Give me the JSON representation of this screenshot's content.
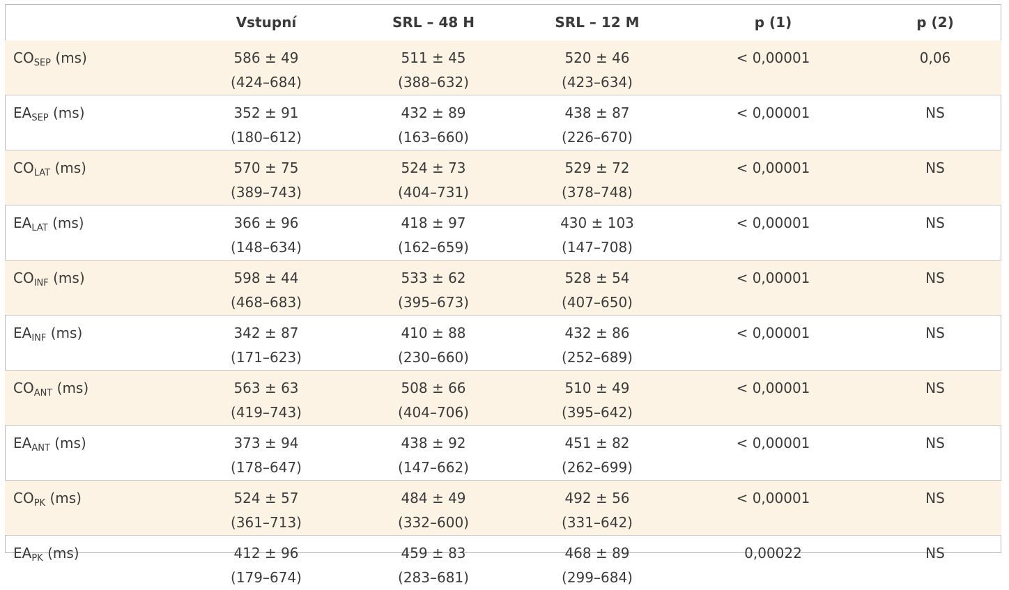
{
  "headers": [
    "",
    "Vstupní",
    "SRL – 48 H",
    "SRL – 12 M",
    "p (1)",
    "p (2)"
  ],
  "row_shading_color": "#fdf3e4",
  "rows": [
    {
      "label": "CO",
      "sub": "SEP",
      "unit": "(ms)",
      "v": [
        "586 ± 49",
        "(424–684)"
      ],
      "h48": [
        "511 ± 45",
        "(388–632)"
      ],
      "m12": [
        "520 ± 46",
        "(423–634)"
      ],
      "p1": "< 0,00001",
      "p2": "0,06"
    },
    {
      "label": "EA",
      "sub": "SEP",
      "unit": "(ms)",
      "v": [
        "352 ± 91",
        "(180–612)"
      ],
      "h48": [
        "432 ± 89",
        "(163–660)"
      ],
      "m12": [
        "438 ± 87",
        "(226–670)"
      ],
      "p1": "< 0,00001",
      "p2": "NS"
    },
    {
      "label": "CO",
      "sub": "LAT",
      "unit": "(ms)",
      "v": [
        "570 ± 75",
        "(389–743)"
      ],
      "h48": [
        "524 ± 73",
        "(404–731)"
      ],
      "m12": [
        "529 ± 72",
        "(378–748)"
      ],
      "p1": "< 0,00001",
      "p2": "NS"
    },
    {
      "label": "EA",
      "sub": "LAT",
      "unit": "(ms)",
      "v": [
        "366 ± 96",
        "(148–634)"
      ],
      "h48": [
        "418 ± 97",
        "(162–659)"
      ],
      "m12": [
        "430 ± 103",
        "(147–708)"
      ],
      "p1": "< 0,00001",
      "p2": "NS"
    },
    {
      "label": "CO",
      "sub": "INF",
      "unit": "(ms)",
      "v": [
        "598 ± 44",
        "(468–683)"
      ],
      "h48": [
        "533 ± 62",
        "(395–673)"
      ],
      "m12": [
        "528 ± 54",
        "(407–650)"
      ],
      "p1": "< 0,00001",
      "p2": "NS"
    },
    {
      "label": "EA",
      "sub": "INF",
      "unit": "(ms)",
      "v": [
        "342 ± 87",
        "(171–623)"
      ],
      "h48": [
        "410 ± 88",
        "(230–660)"
      ],
      "m12": [
        "432 ± 86",
        "(252–689)"
      ],
      "p1": "< 0,00001",
      "p2": "NS"
    },
    {
      "label": "CO",
      "sub": "ANT",
      "unit": "(ms)",
      "v": [
        "563 ± 63",
        "(419–743)"
      ],
      "h48": [
        "508 ± 66",
        "(404–706)"
      ],
      "m12": [
        "510 ± 49",
        "(395–642)"
      ],
      "p1": "< 0,00001",
      "p2": "NS"
    },
    {
      "label": "EA",
      "sub": "ANT",
      "unit": "(ms)",
      "v": [
        "373 ± 94",
        "(178–647)"
      ],
      "h48": [
        "438 ± 92",
        "(147–662)"
      ],
      "m12": [
        "451 ± 82",
        "(262–699)"
      ],
      "p1": "< 0,00001",
      "p2": "NS"
    },
    {
      "label": "CO",
      "sub": "PK",
      "unit": "(ms)",
      "v": [
        "524 ± 57",
        "(361–713)"
      ],
      "h48": [
        "484 ± 49",
        "(332–600)"
      ],
      "m12": [
        "492 ± 56",
        "(331–642)"
      ],
      "p1": "< 0,00001",
      "p2": "NS"
    },
    {
      "label": "EA",
      "sub": "PK",
      "unit": "(ms)",
      "v": [
        "412 ± 96",
        "(179–674)"
      ],
      "h48": [
        "459 ± 83",
        "(283–681)"
      ],
      "m12": [
        "468 ± 89",
        "(299–684)"
      ],
      "p1": "0,00022",
      "p2": "NS"
    }
  ]
}
